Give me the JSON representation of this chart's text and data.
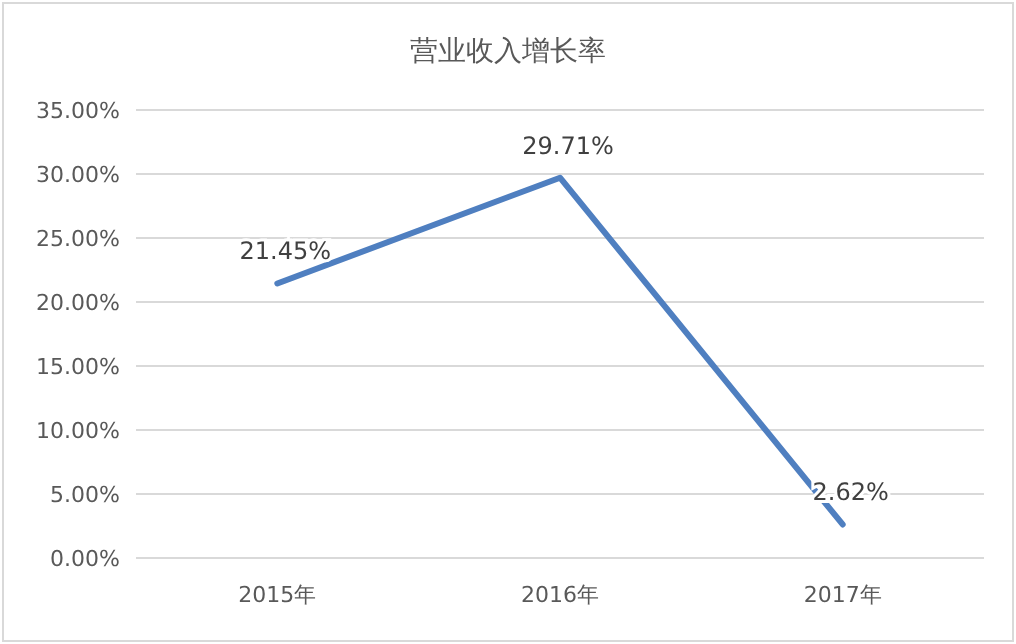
{
  "chart_data": {
    "type": "line",
    "title": "营业收入增长率",
    "categories": [
      "2015年",
      "2016年",
      "2017年"
    ],
    "series": [
      {
        "color": "#4f7fc0",
        "values": [
          21.45,
          29.71,
          2.62
        ],
        "value_labels": [
          "21.45%",
          "29.71%",
          "2.62%"
        ]
      }
    ],
    "ylim": [
      0,
      35
    ],
    "yticks": [
      {
        "value": 0,
        "label": "0.00%"
      },
      {
        "value": 5,
        "label": "5.00%"
      },
      {
        "value": 10,
        "label": "10.00%"
      },
      {
        "value": 15,
        "label": "15.00%"
      },
      {
        "value": 20,
        "label": "20.00%"
      },
      {
        "value": 25,
        "label": "25.00%"
      },
      {
        "value": 30,
        "label": "30.00%"
      },
      {
        "value": 35,
        "label": "35.00%"
      }
    ],
    "grid": "y",
    "marker": "none",
    "line_style": "solid"
  }
}
